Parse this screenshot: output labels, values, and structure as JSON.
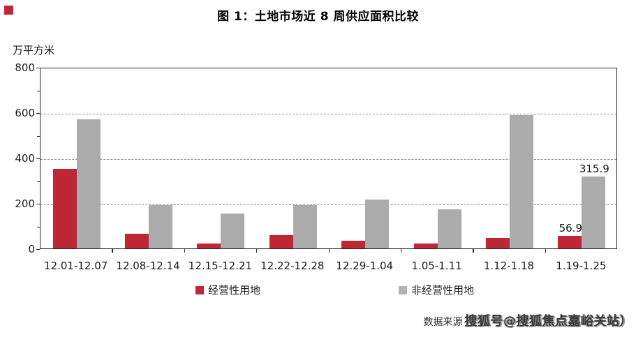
{
  "title": "图 1：土地市场近 8 周供应面积比较",
  "chart_data": {
    "type": "bar",
    "title": "图 1：土地市场近 8 周供应面积比较",
    "unit_label": "万平方米",
    "categories": [
      "12.01-12.07",
      "12.08-12.14",
      "12.15-12.21",
      "12.22-12.28",
      "12.29-1.04",
      "1.05-1.11",
      "1.12-1.18",
      "1.19-1.25"
    ],
    "series": [
      {
        "name": "经营性用地",
        "color": "#be2836",
        "values": [
          350,
          65,
          23,
          60,
          35,
          22,
          46,
          56.9
        ]
      },
      {
        "name": "非经营性用地",
        "color": "#ababab",
        "values": [
          570,
          192,
          155,
          190,
          215,
          172,
          588,
          315.9
        ]
      }
    ],
    "data_labels": [
      {
        "series_index": 0,
        "category_index": 7,
        "text": "56.9"
      },
      {
        "series_index": 1,
        "category_index": 7,
        "text": "315.9"
      }
    ],
    "y_axis": {
      "min": 0,
      "max": 800,
      "major_step": 200,
      "minor_step": 100,
      "tick_labels": [
        "0",
        "200",
        "400",
        "600",
        "800"
      ]
    },
    "grid": "horizontal dashed lines at major ticks",
    "legend_position": "bottom"
  },
  "legend": {
    "items": [
      {
        "label": "经营性用地",
        "color": "#be2836"
      },
      {
        "label": "非经营性用地",
        "color": "#b3b3b3"
      }
    ]
  },
  "footer": {
    "source_label": "数据来源",
    "watermark": "搜狐号@搜狐焦点嘉峪关站）"
  },
  "decorations": {
    "corner_mark_color": "#be2636"
  }
}
